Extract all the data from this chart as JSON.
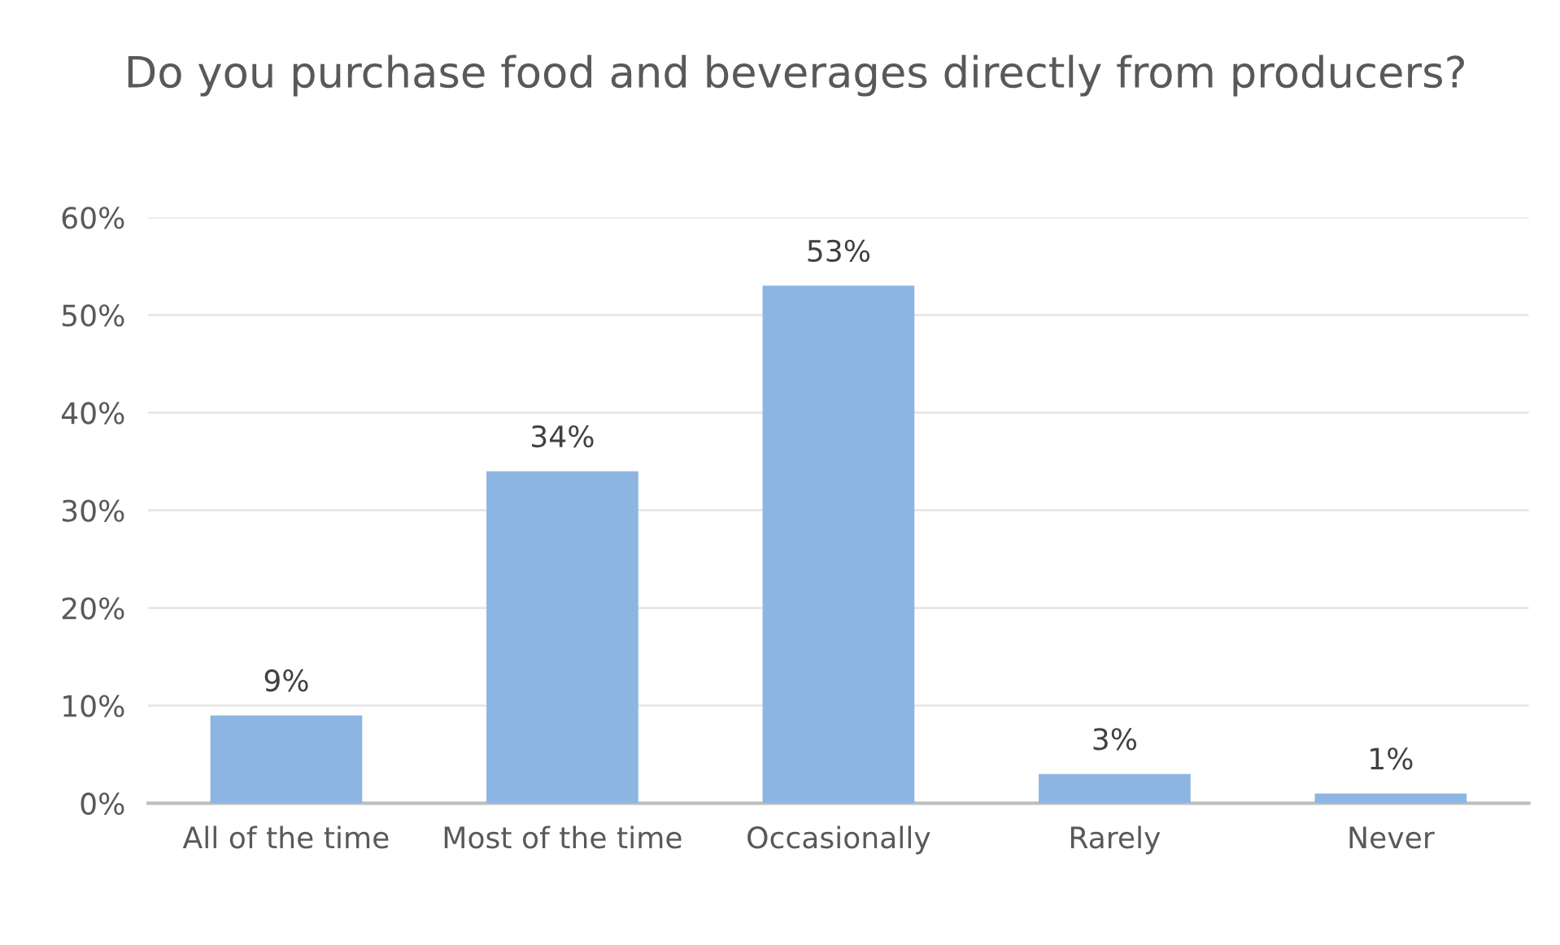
{
  "chart_data": {
    "type": "bar",
    "title": "Do you purchase food and beverages directly from producers?",
    "categories": [
      "All of the time",
      "Most of the time",
      "Occasionally",
      "Rarely",
      "Never"
    ],
    "values": [
      9,
      34,
      53,
      3,
      1
    ],
    "value_labels": [
      "9%",
      "34%",
      "53%",
      "3%",
      "1%"
    ],
    "color": "#8cb6e1",
    "ylim": [
      0,
      60
    ],
    "yticks": [
      {
        "value": 0,
        "label": "0%"
      },
      {
        "value": 10,
        "label": "10%"
      },
      {
        "value": 20,
        "label": "20%"
      },
      {
        "value": 30,
        "label": "30%"
      },
      {
        "value": 40,
        "label": "40%"
      },
      {
        "value": 50,
        "label": "50%"
      },
      {
        "value": 60,
        "label": "60%"
      }
    ],
    "grid": "y",
    "legend": false
  }
}
